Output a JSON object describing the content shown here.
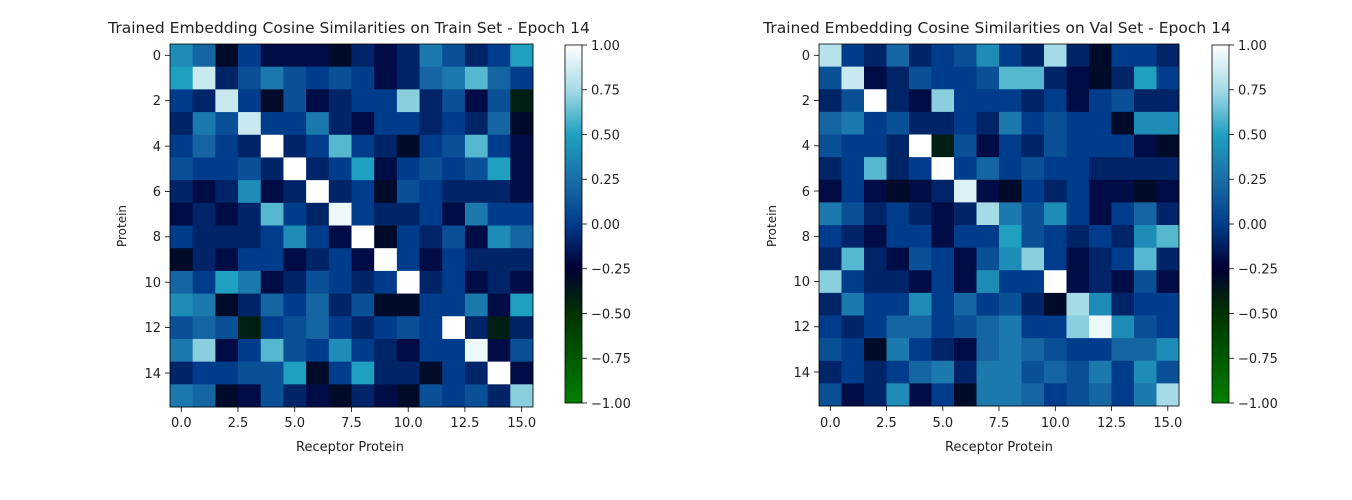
{
  "chart_data": [
    {
      "type": "heatmap",
      "title": "Trained Embedding Cosine Similarities on Train Set - Epoch 14",
      "xlabel": "Receptor Protein",
      "ylabel": "Protein",
      "x_ticks": [
        "0.0",
        "2.5",
        "5.0",
        "7.5",
        "10.0",
        "12.5",
        "15.0"
      ],
      "y_ticks": [
        "0",
        "2",
        "4",
        "6",
        "8",
        "10",
        "12",
        "14"
      ],
      "colorbar_ticks": [
        "1.00",
        "0.75",
        "0.50",
        "0.25",
        "0.00",
        "−0.25",
        "−0.50",
        "−0.75",
        "−1.00"
      ],
      "vmin": -1.0,
      "vmax": 1.0,
      "n_rows": 16,
      "n_cols": 16,
      "values": [
        [
          0.4,
          0.2,
          -0.3,
          0.0,
          -0.2,
          -0.2,
          -0.2,
          -0.3,
          -0.1,
          -0.2,
          -0.1,
          0.3,
          0.1,
          -0.1,
          0.0,
          0.5
        ],
        [
          0.5,
          0.85,
          -0.1,
          0.1,
          0.3,
          0.1,
          0.0,
          0.1,
          0.0,
          -0.2,
          -0.1,
          0.2,
          0.3,
          0.6,
          0.2,
          0.0
        ],
        [
          0.0,
          -0.1,
          0.85,
          0.0,
          -0.3,
          0.1,
          -0.2,
          -0.1,
          0.0,
          0.0,
          0.7,
          -0.1,
          0.1,
          -0.2,
          0.1,
          -0.4
        ],
        [
          -0.1,
          0.3,
          0.1,
          0.85,
          0.0,
          0.0,
          0.3,
          -0.1,
          -0.2,
          0.0,
          0.0,
          -0.1,
          0.0,
          -0.1,
          0.2,
          -0.3
        ],
        [
          0.0,
          0.2,
          0.0,
          -0.1,
          1.0,
          -0.1,
          0.0,
          0.6,
          0.0,
          -0.1,
          -0.3,
          0.0,
          0.1,
          0.6,
          0.0,
          -0.2
        ],
        [
          0.1,
          0.0,
          0.0,
          0.1,
          -0.1,
          1.0,
          -0.1,
          0.0,
          0.5,
          -0.2,
          0.0,
          0.1,
          0.0,
          0.1,
          0.5,
          -0.2
        ],
        [
          -0.1,
          -0.2,
          -0.1,
          0.4,
          -0.2,
          -0.1,
          1.0,
          -0.1,
          0.0,
          -0.3,
          0.1,
          0.0,
          -0.1,
          -0.1,
          -0.1,
          -0.2
        ],
        [
          -0.2,
          -0.1,
          -0.2,
          -0.1,
          0.6,
          0.0,
          -0.1,
          0.95,
          0.0,
          -0.1,
          -0.1,
          0.0,
          -0.2,
          0.3,
          0.0,
          0.0
        ],
        [
          0.0,
          -0.1,
          -0.1,
          -0.1,
          0.0,
          0.4,
          0.0,
          -0.2,
          1.0,
          -0.3,
          0.0,
          -0.1,
          0.1,
          -0.2,
          0.4,
          0.2
        ],
        [
          -0.3,
          -0.1,
          -0.2,
          0.0,
          0.0,
          -0.2,
          -0.1,
          0.0,
          -0.2,
          1.0,
          0.0,
          -0.2,
          0.0,
          -0.1,
          -0.1,
          -0.1
        ],
        [
          0.2,
          0.0,
          0.5,
          0.3,
          -0.2,
          -0.1,
          0.1,
          0.0,
          -0.1,
          0.0,
          1.0,
          -0.1,
          0.0,
          -0.2,
          -0.1,
          -0.2
        ],
        [
          0.4,
          0.3,
          -0.3,
          -0.1,
          0.2,
          0.0,
          0.2,
          -0.1,
          0.1,
          -0.3,
          -0.3,
          0.0,
          0.0,
          0.3,
          -0.2,
          0.5
        ],
        [
          0.1,
          0.2,
          0.1,
          -0.4,
          0.0,
          0.1,
          0.2,
          0.0,
          -0.1,
          0.0,
          0.1,
          0.0,
          1.0,
          -0.1,
          -0.4,
          -0.1
        ],
        [
          0.3,
          0.7,
          -0.2,
          0.0,
          0.6,
          0.1,
          0.0,
          0.4,
          0.0,
          -0.1,
          -0.2,
          0.0,
          0.0,
          0.95,
          -0.2,
          0.1
        ],
        [
          -0.1,
          0.0,
          0.0,
          0.1,
          0.1,
          0.5,
          -0.3,
          0.0,
          0.5,
          -0.1,
          -0.1,
          -0.3,
          0.0,
          -0.1,
          1.0,
          -0.2
        ],
        [
          0.3,
          0.2,
          -0.3,
          -0.2,
          0.1,
          -0.1,
          -0.2,
          -0.3,
          -0.1,
          -0.2,
          -0.3,
          0.1,
          0.0,
          0.1,
          -0.1,
          0.7
        ]
      ]
    },
    {
      "type": "heatmap",
      "title": "Trained Embedding Cosine Similarities on Val Set - Epoch 14",
      "xlabel": "Receptor Protein",
      "ylabel": "Protein",
      "x_ticks": [
        "0.0",
        "2.5",
        "5.0",
        "7.5",
        "10.0",
        "12.5",
        "15.0"
      ],
      "y_ticks": [
        "0",
        "2",
        "4",
        "6",
        "8",
        "10",
        "12",
        "14"
      ],
      "colorbar_ticks": [
        "1.00",
        "0.75",
        "0.50",
        "0.25",
        "0.00",
        "−0.25",
        "−0.50",
        "−0.75",
        "−1.00"
      ],
      "vmin": -1.0,
      "vmax": 1.0,
      "n_rows": 16,
      "n_cols": 16,
      "values": [
        [
          0.8,
          0.0,
          -0.1,
          0.2,
          -0.1,
          0.0,
          0.1,
          0.4,
          0.0,
          -0.1,
          0.75,
          -0.1,
          -0.3,
          0.0,
          0.0,
          -0.1
        ],
        [
          0.1,
          0.85,
          -0.2,
          -0.1,
          0.1,
          0.0,
          0.0,
          0.1,
          0.6,
          0.6,
          -0.1,
          -0.2,
          -0.3,
          -0.1,
          0.5,
          0.0
        ],
        [
          -0.1,
          0.1,
          1.0,
          -0.1,
          -0.2,
          0.7,
          0.0,
          0.0,
          0.0,
          -0.1,
          0.0,
          -0.2,
          0.0,
          0.1,
          -0.1,
          -0.1
        ],
        [
          0.2,
          0.3,
          0.0,
          0.1,
          -0.1,
          -0.1,
          0.0,
          -0.1,
          0.3,
          0.0,
          0.1,
          0.0,
          0.0,
          -0.3,
          0.4,
          0.4
        ],
        [
          0.1,
          0.0,
          0.0,
          -0.1,
          1.0,
          -0.4,
          0.1,
          -0.2,
          0.0,
          -0.1,
          0.1,
          0.0,
          0.0,
          0.0,
          -0.2,
          -0.3
        ],
        [
          -0.1,
          0.0,
          0.6,
          -0.1,
          0.0,
          1.0,
          0.0,
          0.2,
          0.0,
          0.1,
          0.0,
          0.0,
          -0.1,
          -0.1,
          -0.1,
          -0.1
        ],
        [
          -0.2,
          0.0,
          -0.2,
          -0.3,
          -0.2,
          -0.1,
          0.9,
          -0.2,
          -0.3,
          0.0,
          -0.1,
          0.0,
          -0.2,
          -0.2,
          -0.3,
          -0.2
        ],
        [
          0.3,
          0.1,
          -0.1,
          0.0,
          -0.1,
          -0.2,
          -0.1,
          0.75,
          0.3,
          0.1,
          0.4,
          0.0,
          -0.2,
          0.0,
          0.2,
          -0.1
        ],
        [
          0.0,
          -0.1,
          -0.2,
          0.0,
          0.0,
          -0.2,
          0.0,
          0.0,
          0.5,
          0.1,
          0.0,
          -0.1,
          0.0,
          -0.1,
          0.4,
          0.6
        ],
        [
          -0.1,
          0.6,
          -0.1,
          -0.2,
          0.1,
          0.0,
          -0.2,
          0.1,
          0.4,
          0.7,
          0.0,
          -0.2,
          -0.1,
          0.0,
          0.6,
          -0.1
        ],
        [
          0.7,
          0.0,
          -0.1,
          -0.1,
          -0.2,
          0.0,
          -0.2,
          0.4,
          0.0,
          0.0,
          1.0,
          -0.2,
          -0.1,
          -0.2,
          0.1,
          -0.2
        ],
        [
          -0.1,
          0.3,
          0.0,
          0.0,
          0.4,
          0.0,
          0.2,
          0.0,
          0.1,
          -0.1,
          -0.3,
          0.75,
          0.4,
          -0.1,
          0.0,
          0.0
        ],
        [
          0.0,
          -0.1,
          0.0,
          0.2,
          0.2,
          0.0,
          0.1,
          0.2,
          0.3,
          0.0,
          0.0,
          0.7,
          0.95,
          0.4,
          0.1,
          0.0
        ],
        [
          0.1,
          0.0,
          -0.3,
          0.3,
          0.0,
          -0.1,
          -0.2,
          0.2,
          0.3,
          0.2,
          0.1,
          0.0,
          0.0,
          0.2,
          0.2,
          0.4
        ],
        [
          -0.1,
          0.0,
          -0.1,
          0.0,
          0.2,
          0.3,
          -0.1,
          0.3,
          0.3,
          0.1,
          0.2,
          0.1,
          0.3,
          0.0,
          0.4,
          0.1
        ],
        [
          0.1,
          -0.2,
          -0.1,
          0.4,
          -0.2,
          0.0,
          -0.3,
          0.3,
          0.3,
          0.2,
          0.0,
          0.1,
          0.2,
          0.0,
          0.3,
          0.75
        ]
      ]
    }
  ]
}
